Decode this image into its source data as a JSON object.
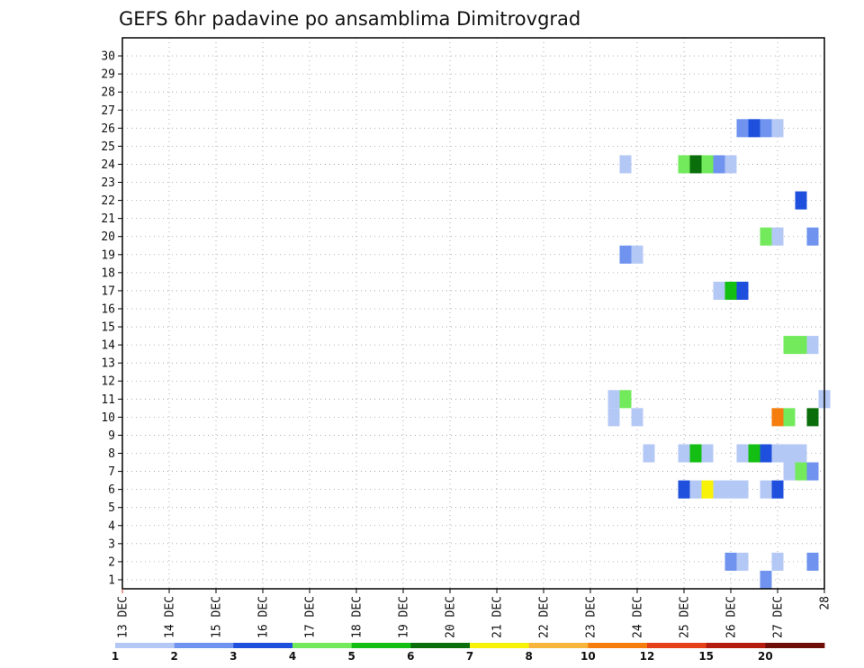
{
  "chart_data": {
    "type": "heatmap",
    "title": "GEFS 6hr padavine po ansamblima Dimitrovgrad",
    "xlabel": "",
    "ylabel": "",
    "x_start_day": 13,
    "x_end_day": 28,
    "steps_per_day": 4,
    "x_tick_labels": [
      "13 DEC",
      "14 DEC",
      "15 DEC",
      "16 DEC",
      "17 DEC",
      "18 DEC",
      "19 DEC",
      "20 DEC",
      "21 DEC",
      "22 DEC",
      "23 DEC",
      "24 DEC",
      "25 DEC",
      "26 DEC",
      "27 DEC",
      "28"
    ],
    "ylim": [
      1,
      30
    ],
    "y_tick_labels": [
      "1",
      "2",
      "3",
      "4",
      "5",
      "6",
      "7",
      "8",
      "9",
      "10",
      "11",
      "12",
      "13",
      "14",
      "15",
      "16",
      "17",
      "18",
      "19",
      "20",
      "21",
      "22",
      "23",
      "24",
      "25",
      "26",
      "27",
      "28",
      "29",
      "30"
    ],
    "legend": {
      "colors": [
        "#b4c8f5",
        "#6f93ee",
        "#1f50dd",
        "#72ea5c",
        "#14bf14",
        "#0a6e0a",
        "#f8f208",
        "#f7b53c",
        "#f47d0e",
        "#e5401a",
        "#b51c10",
        "#6e0e07"
      ],
      "labels": [
        "1",
        "2",
        "3",
        "4",
        "5",
        "6",
        "7",
        "8",
        "10",
        "12",
        "15",
        "20"
      ],
      "placement": "bottom"
    },
    "cells": [
      {
        "member": 1,
        "step": 55,
        "value": 2
      },
      {
        "member": 2,
        "step": 52,
        "value": 2
      },
      {
        "member": 2,
        "step": 53,
        "value": 1
      },
      {
        "member": 2,
        "step": 56,
        "value": 1
      },
      {
        "member": 2,
        "step": 59,
        "value": 2
      },
      {
        "member": 6,
        "step": 48,
        "value": 3
      },
      {
        "member": 6,
        "step": 49,
        "value": 1
      },
      {
        "member": 6,
        "step": 50,
        "value": 7
      },
      {
        "member": 6,
        "step": 51,
        "value": 1
      },
      {
        "member": 6,
        "step": 52,
        "value": 1
      },
      {
        "member": 6,
        "step": 53,
        "value": 1
      },
      {
        "member": 6,
        "step": 55,
        "value": 1
      },
      {
        "member": 6,
        "step": 56,
        "value": 3
      },
      {
        "member": 7,
        "step": 57,
        "value": 1
      },
      {
        "member": 7,
        "step": 58,
        "value": 4
      },
      {
        "member": 7,
        "step": 59,
        "value": 2
      },
      {
        "member": 8,
        "step": 45,
        "value": 1
      },
      {
        "member": 8,
        "step": 48,
        "value": 1
      },
      {
        "member": 8,
        "step": 49,
        "value": 5
      },
      {
        "member": 8,
        "step": 50,
        "value": 1
      },
      {
        "member": 8,
        "step": 53,
        "value": 1
      },
      {
        "member": 8,
        "step": 54,
        "value": 5
      },
      {
        "member": 8,
        "step": 55,
        "value": 3
      },
      {
        "member": 8,
        "step": 56,
        "value": 1
      },
      {
        "member": 8,
        "step": 57,
        "value": 1
      },
      {
        "member": 8,
        "step": 58,
        "value": 1
      },
      {
        "member": 10,
        "step": 42,
        "value": 1
      },
      {
        "member": 10,
        "step": 44,
        "value": 1
      },
      {
        "member": 10,
        "step": 56,
        "value": 10
      },
      {
        "member": 10,
        "step": 57,
        "value": 4
      },
      {
        "member": 10,
        "step": 59,
        "value": 6
      },
      {
        "member": 11,
        "step": 42,
        "value": 1
      },
      {
        "member": 11,
        "step": 43,
        "value": 4
      },
      {
        "member": 11,
        "step": 60,
        "value": 1
      },
      {
        "member": 14,
        "step": 57,
        "value": 4
      },
      {
        "member": 14,
        "step": 58,
        "value": 4
      },
      {
        "member": 14,
        "step": 59,
        "value": 1
      },
      {
        "member": 17,
        "step": 51,
        "value": 1
      },
      {
        "member": 17,
        "step": 52,
        "value": 5
      },
      {
        "member": 17,
        "step": 53,
        "value": 3
      },
      {
        "member": 19,
        "step": 43,
        "value": 2
      },
      {
        "member": 19,
        "step": 44,
        "value": 1
      },
      {
        "member": 20,
        "step": 55,
        "value": 4
      },
      {
        "member": 20,
        "step": 56,
        "value": 1
      },
      {
        "member": 20,
        "step": 59,
        "value": 2
      },
      {
        "member": 22,
        "step": 58,
        "value": 3
      },
      {
        "member": 24,
        "step": 43,
        "value": 1
      },
      {
        "member": 24,
        "step": 48,
        "value": 4
      },
      {
        "member": 24,
        "step": 49,
        "value": 6
      },
      {
        "member": 24,
        "step": 50,
        "value": 4
      },
      {
        "member": 24,
        "step": 51,
        "value": 2
      },
      {
        "member": 24,
        "step": 52,
        "value": 1
      },
      {
        "member": 26,
        "step": 53,
        "value": 2
      },
      {
        "member": 26,
        "step": 54,
        "value": 3
      },
      {
        "member": 26,
        "step": 55,
        "value": 2
      },
      {
        "member": 26,
        "step": 56,
        "value": 1
      }
    ]
  }
}
